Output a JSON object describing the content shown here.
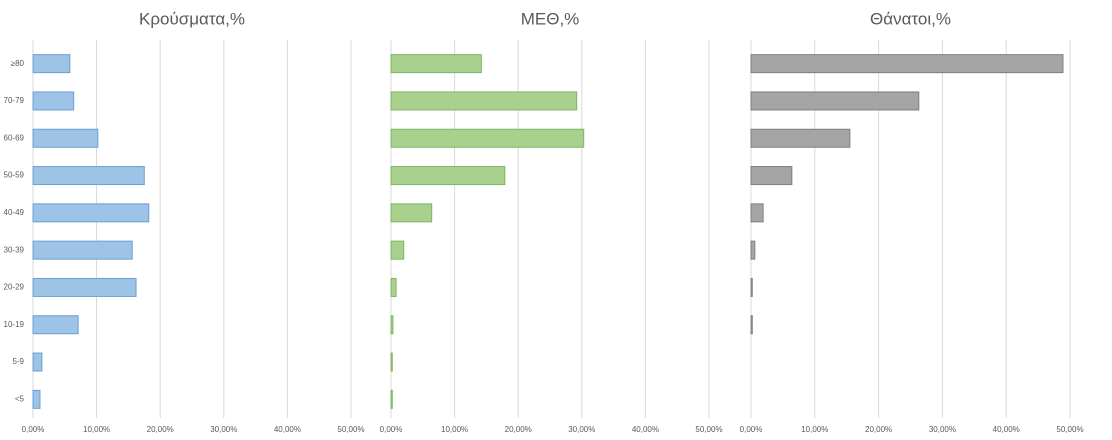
{
  "categories": [
    "≥80",
    "70-79",
    "60-69",
    "50-59",
    "40-49",
    "30-39",
    "20-29",
    "10-19",
    "5-9",
    "<5"
  ],
  "chart_data": [
    {
      "type": "bar",
      "orientation": "horizontal",
      "title": "Κρούσματα,%",
      "color": "#9dc3e6",
      "stroke": "#6f9fcf",
      "values": [
        5.8,
        6.4,
        10.2,
        17.5,
        18.2,
        15.6,
        16.2,
        7.1,
        1.4,
        1.1
      ],
      "xlim": [
        0,
        50
      ],
      "xticks": [
        {
          "value": 0,
          "label": "0,00%"
        },
        {
          "value": 10,
          "label": "10,00%"
        },
        {
          "value": 20,
          "label": "20,00%"
        },
        {
          "value": 30,
          "label": "30,00%"
        },
        {
          "value": 40,
          "label": "40,00%"
        },
        {
          "value": 50,
          "label": "50,00%"
        }
      ],
      "grid": true
    },
    {
      "type": "bar",
      "orientation": "horizontal",
      "title": "ΜΕΘ,%",
      "color": "#a9d18e",
      "stroke": "#7fb463",
      "values": [
        14.2,
        29.2,
        30.3,
        17.9,
        6.4,
        2.0,
        0.8,
        0.3,
        0.2,
        0.2
      ],
      "xlim": [
        0,
        50
      ],
      "xticks": [
        {
          "value": 0,
          "label": "0,00%"
        },
        {
          "value": 10,
          "label": "10,00%"
        },
        {
          "value": 20,
          "label": "20,00%"
        },
        {
          "value": 30,
          "label": "30,00%"
        },
        {
          "value": 40,
          "label": "40,00%"
        },
        {
          "value": 50,
          "label": "50,00%"
        }
      ],
      "grid": true
    },
    {
      "type": "bar",
      "orientation": "horizontal",
      "title": "Θάνατοι,%",
      "color": "#a5a5a5",
      "stroke": "#7f7f7f",
      "values": [
        48.9,
        26.3,
        15.5,
        6.4,
        1.9,
        0.6,
        0.2,
        0.2,
        0,
        0
      ],
      "xlim": [
        0,
        50
      ],
      "xticks": [
        {
          "value": 0,
          "label": "0,00%"
        },
        {
          "value": 10,
          "label": "10,00%"
        },
        {
          "value": 20,
          "label": "20,00%"
        },
        {
          "value": 30,
          "label": "30,00%"
        },
        {
          "value": 40,
          "label": "40,00%"
        },
        {
          "value": 50,
          "label": "50,00%"
        }
      ],
      "grid": true
    }
  ]
}
